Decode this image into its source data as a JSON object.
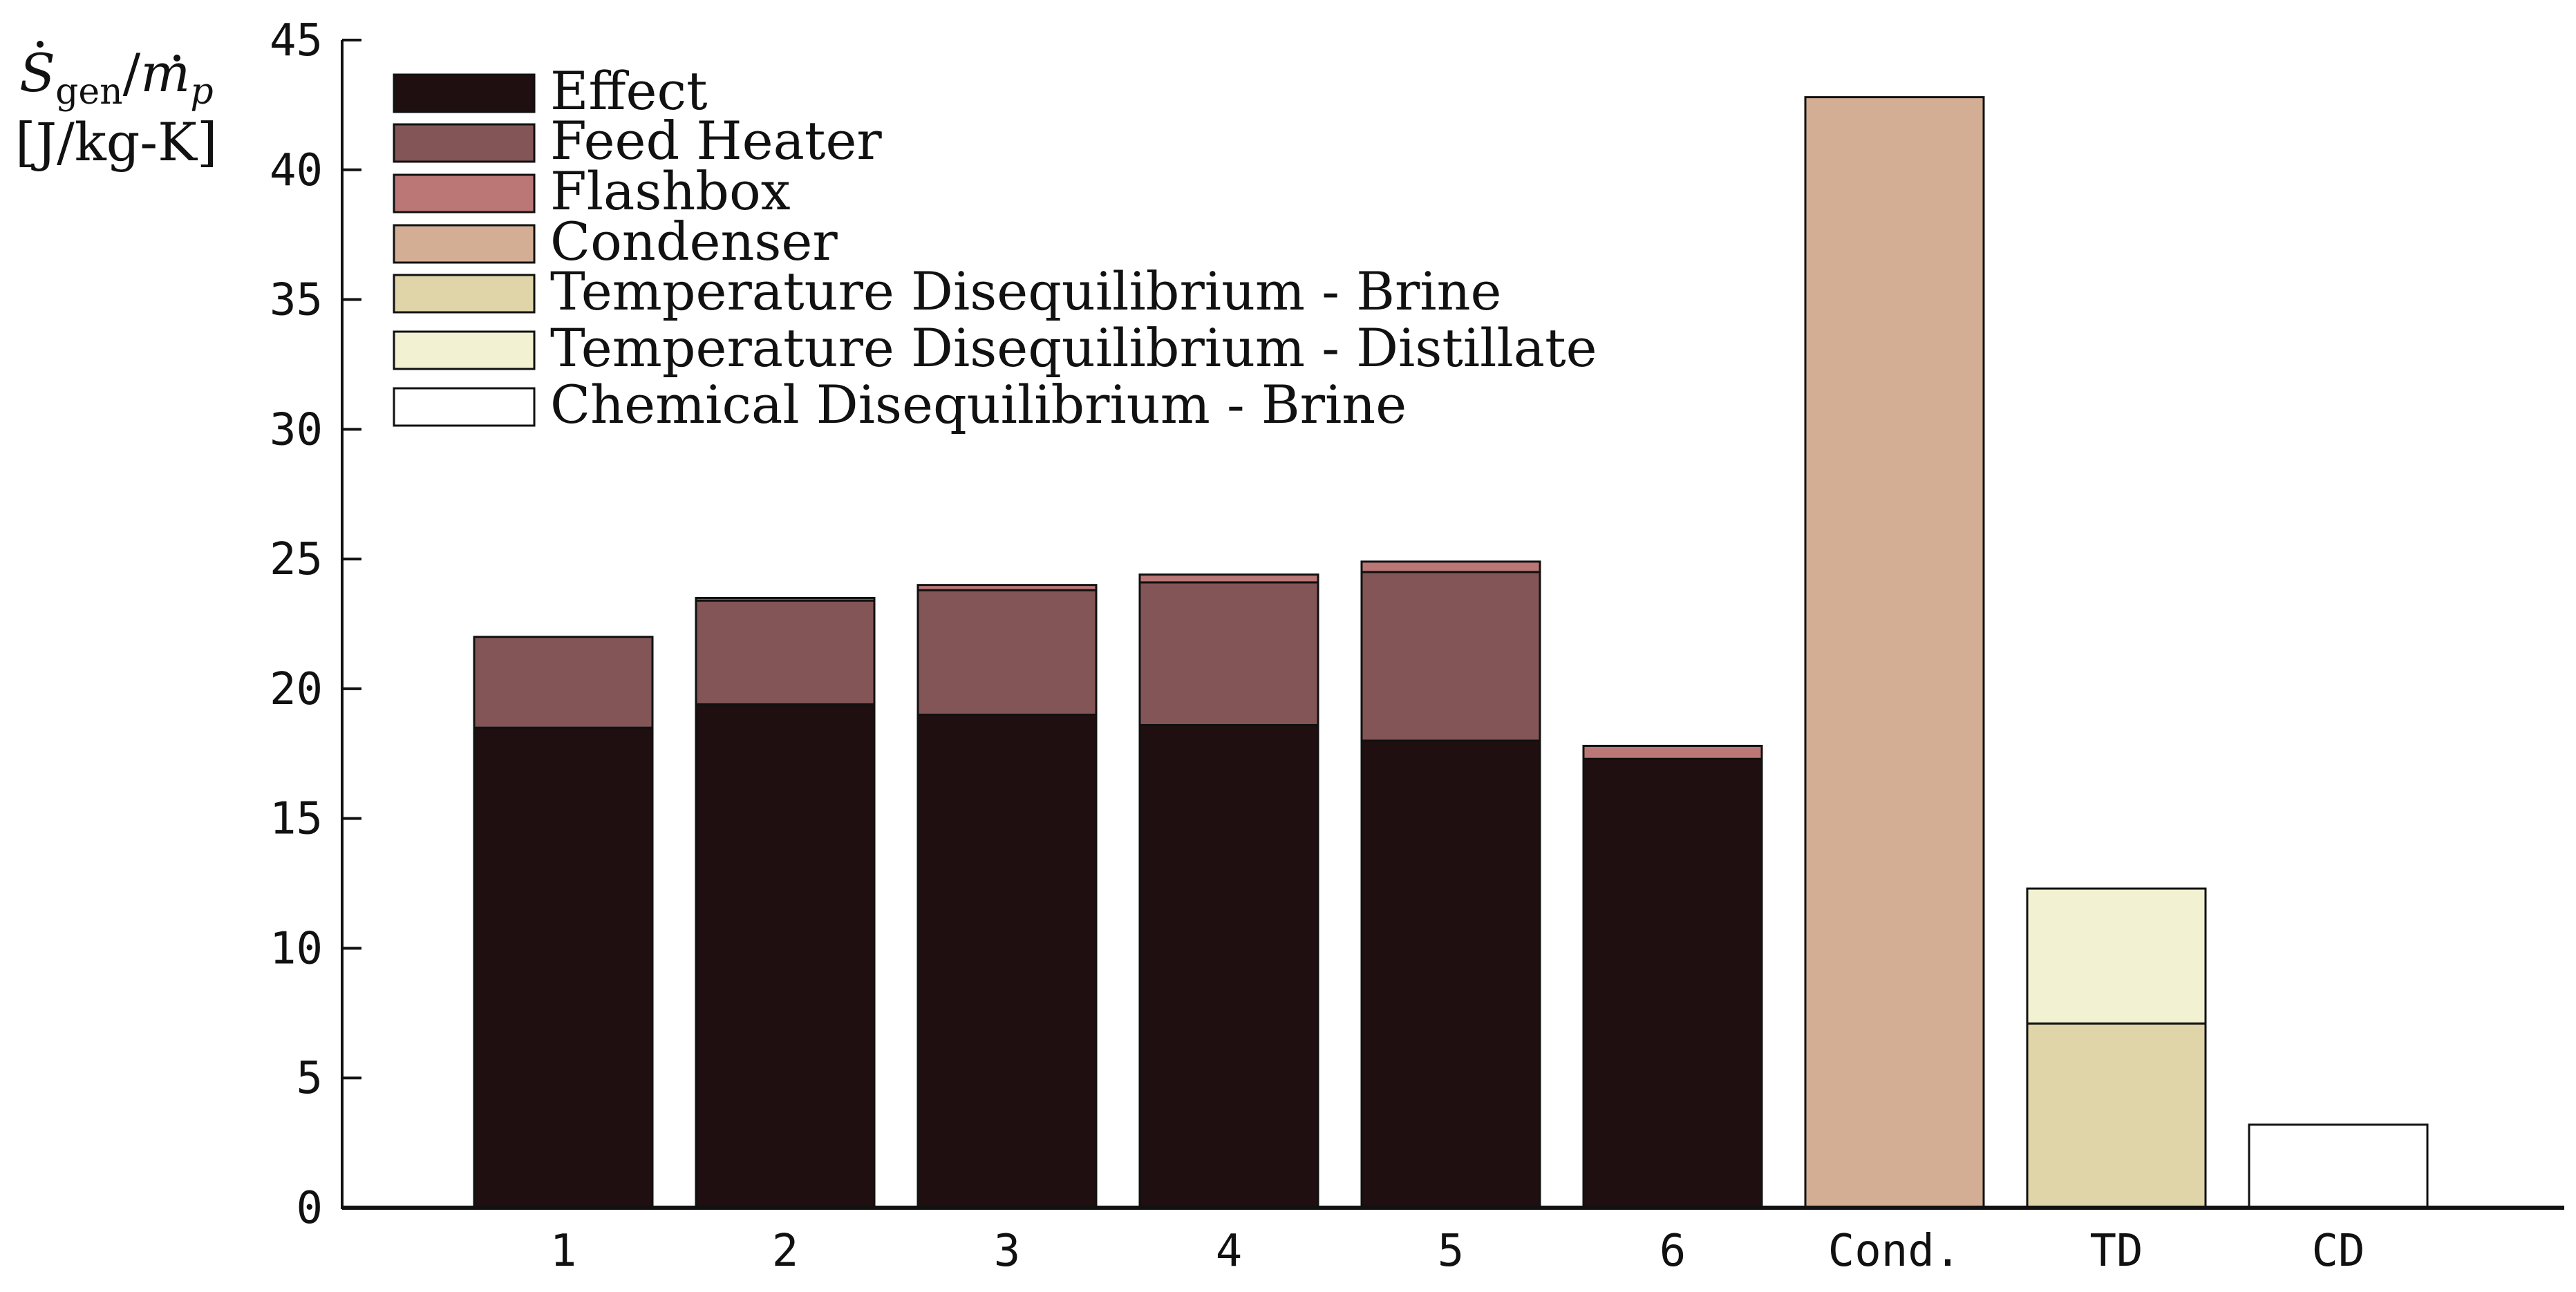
{
  "chart_data": {
    "type": "bar",
    "stacked": true,
    "ylabel": {
      "line1": {
        "s": "S",
        "sub": "gen",
        "slash": "/",
        "m": "m",
        "p": "p"
      },
      "line2": "[J/kg-K]"
    },
    "ylim": [
      0,
      45
    ],
    "yticks": [
      "0",
      "5",
      "10",
      "15",
      "20",
      "25",
      "30",
      "35",
      "40",
      "45"
    ],
    "categories": [
      "1",
      "2",
      "3",
      "4",
      "5",
      "6",
      "Cond.",
      "TD",
      "CD"
    ],
    "series": [
      {
        "name": "Effect",
        "color": "#1f0f10",
        "values": [
          18.5,
          19.4,
          19.0,
          18.6,
          18.0,
          17.3,
          0,
          0,
          0
        ]
      },
      {
        "name": "Feed Heater",
        "color": "#835556",
        "values": [
          3.5,
          4.0,
          4.8,
          5.5,
          6.5,
          0,
          0,
          0,
          0
        ]
      },
      {
        "name": "Flashbox",
        "color": "#bb7776",
        "values": [
          0,
          0.1,
          0.2,
          0.3,
          0.4,
          0.5,
          0,
          0,
          0
        ]
      },
      {
        "name": "Condenser",
        "color": "#d3ae95",
        "values": [
          0,
          0,
          0,
          0,
          0,
          0,
          42.8,
          0,
          0
        ]
      },
      {
        "name": "Temperature Disequilibrium - Brine",
        "color": "#e0d5a8",
        "values": [
          0,
          0,
          0,
          0,
          0,
          0,
          0,
          7.1,
          0
        ]
      },
      {
        "name": "Temperature Disequilibrium - Distillate",
        "color": "#f2f2d3",
        "values": [
          0,
          0,
          0,
          0,
          0,
          0,
          0,
          5.2,
          0
        ]
      },
      {
        "name": "Chemical Disequilibrium - Brine",
        "color": "#ffffff",
        "values": [
          0,
          0,
          0,
          0,
          0,
          0,
          0,
          0,
          3.2
        ]
      }
    ],
    "legend": {
      "position": "top-left"
    },
    "grid": false
  }
}
